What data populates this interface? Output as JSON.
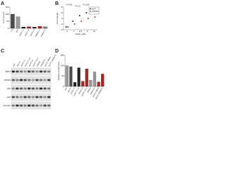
{
  "chart_data": [
    {
      "type": "bar",
      "panel": "A",
      "ylabel": "% of control",
      "categories": [
        "Ctrl",
        "siNT",
        "siWIP1 #1",
        "siWIP1 #2",
        "siWIP1 #3",
        "siMDM2 #1",
        "siMDM2 #2"
      ],
      "values": [
        100,
        82,
        10,
        12,
        9,
        14,
        11
      ],
      "colors": [
        "#4d4d4d",
        "#9a9a9a",
        "#222222",
        "#b22222",
        "#222222",
        "#b22222",
        "#777777"
      ],
      "ylim": [
        0,
        150
      ],
      "yticks": [
        0,
        50,
        100,
        150
      ]
    },
    {
      "type": "scatter",
      "panel": "B",
      "ylabel": "Fold change",
      "xlabel": "Nutlin (µM)",
      "categories": [
        "0",
        "1",
        "2.5",
        "5",
        "10"
      ],
      "series": [
        {
          "name": "siNT",
          "color": "#222222",
          "values": [
            1,
            3,
            5,
            6,
            7
          ]
        },
        {
          "name": "siWIP1",
          "color": "#c0392b",
          "values": [
            1,
            2,
            3,
            4,
            4.5
          ]
        }
      ],
      "ylim": [
        0,
        8
      ],
      "yticks": [
        0,
        2,
        4,
        6,
        8
      ],
      "annotations": [
        "P<0.001",
        "P<0.01",
        "P<0.001"
      ],
      "legend": "upper right"
    },
    {
      "type": "bar",
      "panel": "D",
      "ylabel": "Relative expression",
      "categories": [
        "siNT",
        "siNT+N",
        "siWIP1 #1",
        "siWIP1 #1+N",
        "siWIP1 #2",
        "siWIP1 #2+N",
        "siMDM2",
        "siMDM2+N",
        "siWIP1+MDM2",
        "siWIP1+MDM2+N"
      ],
      "values": [
        100,
        95,
        20,
        90,
        25,
        85,
        30,
        70,
        22,
        60
      ],
      "colors": [
        "#9a9a9a",
        "#4d4d4d",
        "#222222",
        "#222222",
        "#b22222",
        "#b22222",
        "#9a9a9a",
        "#9a9a9a",
        "#b22222",
        "#b22222"
      ],
      "ylim": [
        0,
        150
      ],
      "yticks": [
        0,
        50,
        100,
        150
      ]
    }
  ],
  "blot": {
    "panel": "C",
    "lanes": [
      "siNT",
      "siNT+N",
      "siWIP1 #1",
      "siWIP1 #1+N",
      "siWIP1 #2",
      "siWIP1 #2+N",
      "siMDM2",
      "siMDM2+N",
      "siWIP1+MDM2",
      "siWIP1+MDM2+N"
    ],
    "rows": [
      "WIP1",
      "MDM2",
      "p53",
      "p21",
      "Vinculin"
    ]
  }
}
